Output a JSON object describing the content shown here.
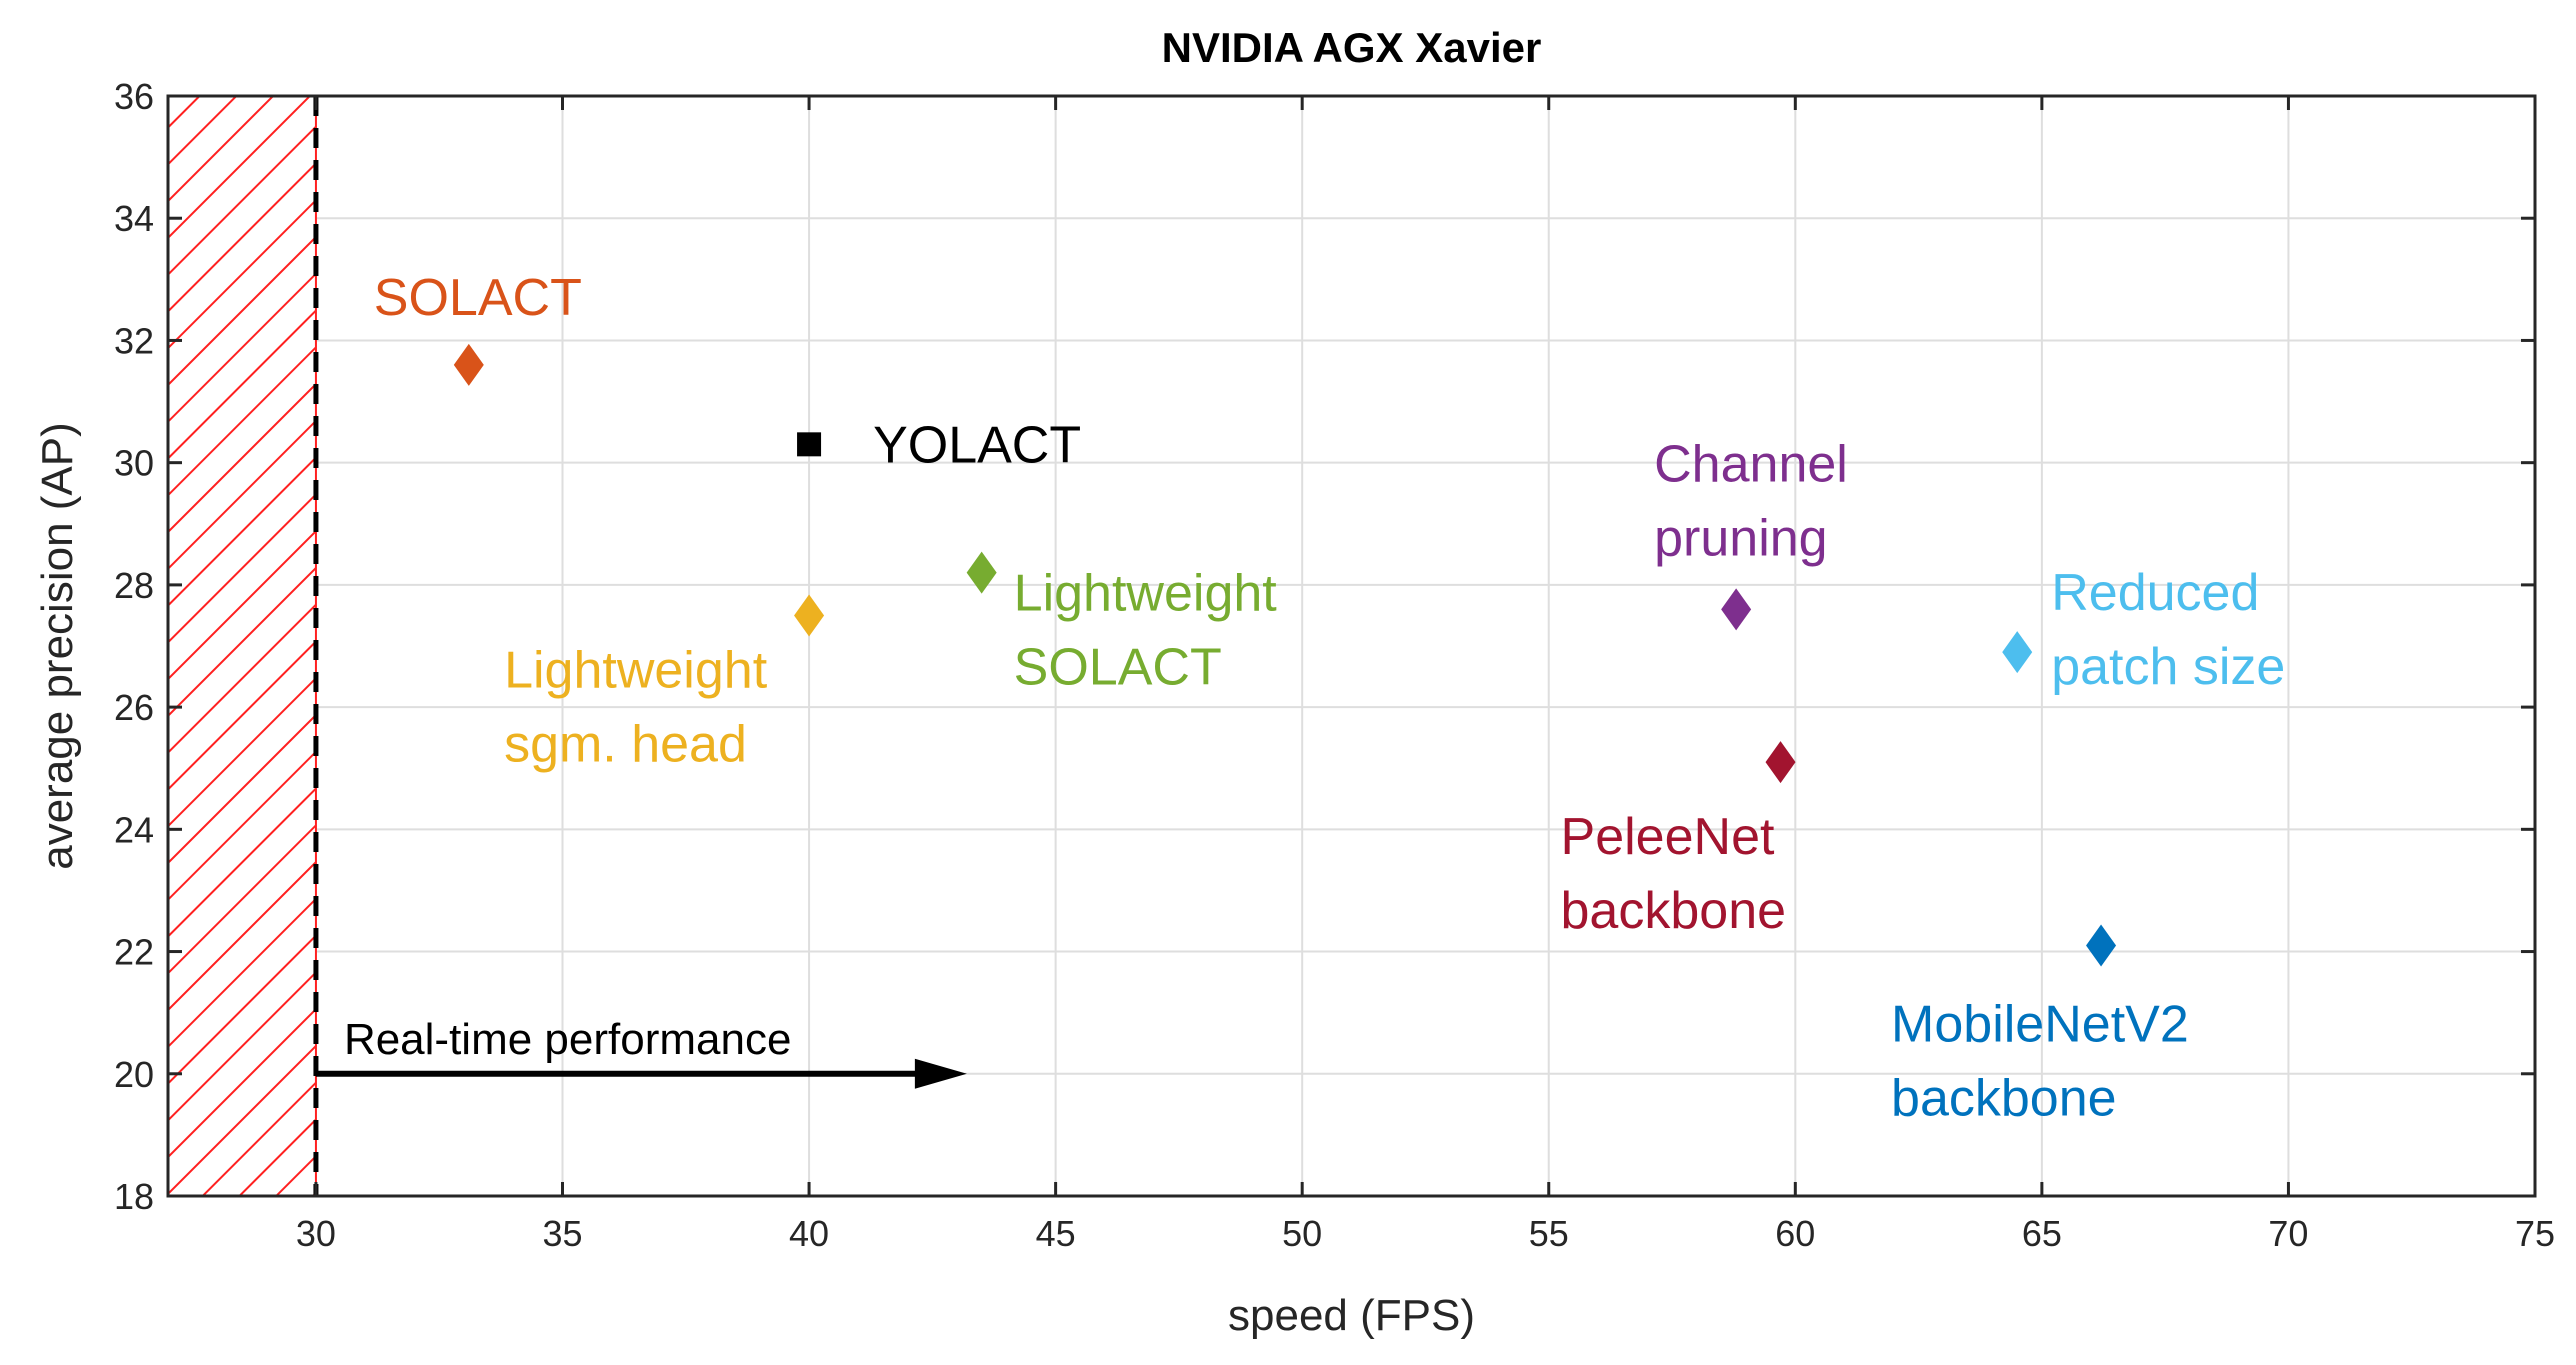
{
  "chart_data": {
    "type": "scatter",
    "title": "NVIDIA AGX Xavier",
    "xlabel": "speed (FPS)",
    "ylabel": "average precision (AP)",
    "xlim": [
      27,
      75
    ],
    "ylim": [
      18,
      36
    ],
    "xticks": [
      30,
      35,
      40,
      45,
      50,
      55,
      60,
      65,
      70,
      75
    ],
    "yticks": [
      18,
      20,
      22,
      24,
      26,
      28,
      30,
      32,
      34,
      36
    ],
    "grid": true,
    "realtime_threshold_fps": 30,
    "realtime_label": "Real-time performance",
    "realtime_arrow_end_fps": 43.2,
    "points": [
      {
        "name": "SOLACT",
        "label_lines": [
          "SOLACT"
        ],
        "x": 33.1,
        "y": 31.6,
        "marker": "diamond",
        "color": "#D95319"
      },
      {
        "name": "YOLACT",
        "label_lines": [
          "YOLACT"
        ],
        "x": 40.0,
        "y": 30.3,
        "marker": "square",
        "color": "#000000"
      },
      {
        "name": "Lightweight sgm. head",
        "label_lines": [
          "Lightweight",
          "sgm. head"
        ],
        "x": 40.0,
        "y": 27.5,
        "marker": "diamond",
        "color": "#EDB120"
      },
      {
        "name": "Lightweight SOLACT",
        "label_lines": [
          "Lightweight",
          "SOLACT"
        ],
        "x": 43.5,
        "y": 28.2,
        "marker": "diamond",
        "color": "#77AC30"
      },
      {
        "name": "Channel pruning",
        "label_lines": [
          "Channel",
          "pruning"
        ],
        "x": 58.8,
        "y": 27.6,
        "marker": "diamond",
        "color": "#7E2F8E"
      },
      {
        "name": "PeleeNet backbone",
        "label_lines": [
          "PeleeNet",
          "backbone"
        ],
        "x": 59.7,
        "y": 25.1,
        "marker": "diamond",
        "color": "#A2142F"
      },
      {
        "name": "Reduced patch size",
        "label_lines": [
          "Reduced",
          "patch size"
        ],
        "x": 64.5,
        "y": 26.9,
        "marker": "diamond",
        "color": "#4DBEEE"
      },
      {
        "name": "MobileNetV2 backbone",
        "label_lines": [
          "MobileNetV2",
          "backbone"
        ],
        "x": 66.2,
        "y": 22.1,
        "marker": "diamond",
        "color": "#0072BD"
      }
    ]
  }
}
